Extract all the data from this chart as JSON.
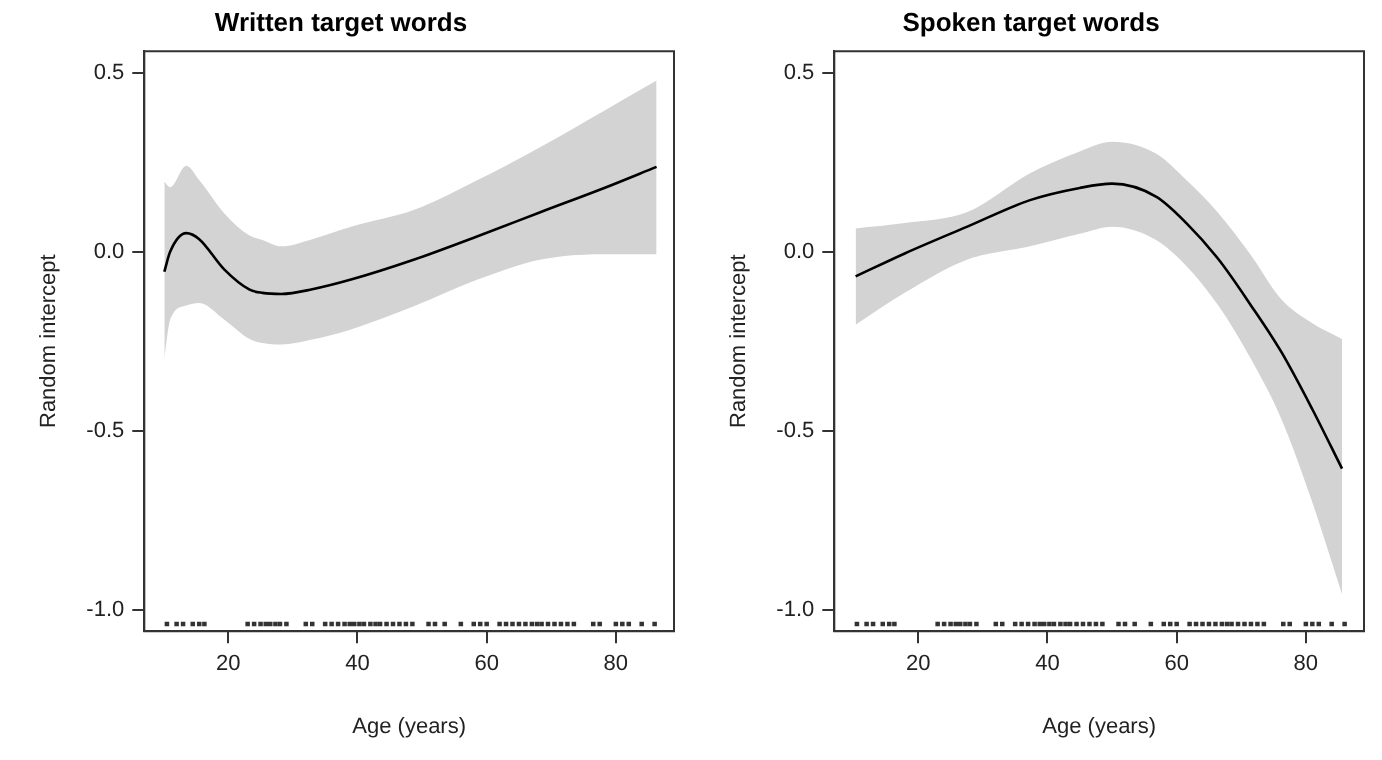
{
  "chart_data": [
    {
      "type": "line",
      "title": "Written target words",
      "xlabel": "Age (years)",
      "ylabel": "Random intercept",
      "xlim": [
        7,
        89
      ],
      "ylim": [
        -1.06,
        0.56
      ],
      "xticks": [
        20,
        40,
        60,
        80
      ],
      "yticks": [
        {
          "value": 0.5,
          "label": "0.5"
        },
        {
          "value": 0,
          "label": "0.0"
        },
        {
          "value": -0.5,
          "label": "-0.5"
        },
        {
          "value": -1,
          "label": "-1.0"
        }
      ],
      "grid": false,
      "legend": false,
      "series": [
        {
          "color": "#000000",
          "x": [
            10.1,
            11,
            13.5,
            15.5,
            19.4,
            23.3,
            25.3,
            28.2,
            33,
            39,
            48.8,
            58.6,
            68.4,
            78.2,
            86.3
          ],
          "values": [
            -0.056,
            0.0,
            0.052,
            0.035,
            -0.05,
            -0.106,
            -0.115,
            -0.118,
            -0.105,
            -0.078,
            -0.022,
            0.043,
            0.111,
            0.178,
            0.237
          ],
          "lower": [
            -0.3,
            -0.19,
            -0.15,
            -0.143,
            -0.19,
            -0.244,
            -0.255,
            -0.259,
            -0.245,
            -0.217,
            -0.152,
            -0.078,
            -0.022,
            -0.007,
            -0.007
          ],
          "upper": [
            0.196,
            0.18,
            0.24,
            0.2,
            0.107,
            0.045,
            0.033,
            0.015,
            0.035,
            0.07,
            0.117,
            0.2,
            0.293,
            0.394,
            0.478
          ]
        },
        {
          "type": "scatter",
          "color": "#333333",
          "x": [
            10.5,
            12,
            13,
            14.5,
            15.5,
            16.3,
            23,
            24,
            25,
            25.8,
            26.5,
            27.3,
            28,
            29,
            32,
            33,
            35,
            36,
            37,
            38,
            38.8,
            39.5,
            40.3,
            41,
            42,
            42.8,
            43.5,
            44.5,
            45.5,
            46.5,
            47.5,
            48.5,
            51,
            52,
            53.5,
            56,
            58,
            59,
            60,
            62,
            63,
            64,
            65,
            66,
            67,
            67.8,
            68.5,
            69.5,
            70.5,
            71.5,
            72.5,
            73.5,
            76.5,
            77.5,
            80,
            81,
            82,
            84,
            86
          ],
          "values": [
            -1.04,
            -1.04,
            -1.04,
            -1.04,
            -1.04,
            -1.04,
            -1.04,
            -1.04,
            -1.04,
            -1.04,
            -1.04,
            -1.04,
            -1.04,
            -1.04,
            -1.04,
            -1.04,
            -1.04,
            -1.04,
            -1.04,
            -1.04,
            -1.04,
            -1.04,
            -1.04,
            -1.04,
            -1.04,
            -1.04,
            -1.04,
            -1.04,
            -1.04,
            -1.04,
            -1.04,
            -1.04,
            -1.04,
            -1.04,
            -1.04,
            -1.04,
            -1.04,
            -1.04,
            -1.04,
            -1.04,
            -1.04,
            -1.04,
            -1.04,
            -1.04,
            -1.04,
            -1.04,
            -1.04,
            -1.04,
            -1.04,
            -1.04,
            -1.04,
            -1.04,
            -1.04,
            -1.04,
            -1.04,
            -1.04,
            -1.04,
            -1.04,
            -1.04
          ]
        }
      ]
    },
    {
      "type": "line",
      "title": "Spoken target words",
      "xlabel": "Age (years)",
      "ylabel": "Random intercept",
      "xlim": [
        7,
        89
      ],
      "ylim": [
        -1.06,
        0.56
      ],
      "xticks": [
        20,
        40,
        60,
        80
      ],
      "yticks": [
        {
          "value": 0.5,
          "label": "0.5"
        },
        {
          "value": 0,
          "label": "0.0"
        },
        {
          "value": -0.5,
          "label": "-0.5"
        },
        {
          "value": -1,
          "label": "-1.0"
        }
      ],
      "grid": false,
      "legend": false,
      "series": [
        {
          "color": "#000000",
          "x": [
            10.3,
            17.9,
            27.6,
            37.3,
            45,
            50,
            56.8,
            61.5,
            66.5,
            71.5,
            76.2,
            81,
            85.6
          ],
          "values": [
            -0.069,
            -0.005,
            0.07,
            0.144,
            0.178,
            0.19,
            0.154,
            0.08,
            -0.022,
            -0.15,
            -0.28,
            -0.44,
            -0.606
          ],
          "lower": [
            -0.204,
            -0.115,
            -0.022,
            0.015,
            0.05,
            0.07,
            0.033,
            -0.04,
            -0.152,
            -0.3,
            -0.467,
            -0.7,
            -0.957
          ],
          "upper": [
            0.065,
            0.08,
            0.111,
            0.219,
            0.28,
            0.307,
            0.274,
            0.2,
            0.107,
            -0.01,
            -0.133,
            -0.2,
            -0.244
          ]
        },
        {
          "type": "scatter",
          "color": "#333333",
          "x": [
            10.5,
            12,
            13,
            14.5,
            15.5,
            16.3,
            23,
            24,
            25,
            25.8,
            26.5,
            27.3,
            28,
            29,
            32,
            33,
            35,
            36,
            37,
            38,
            38.8,
            39.5,
            40.3,
            41,
            42,
            42.8,
            43.5,
            44.5,
            45.5,
            46.5,
            47.5,
            48.5,
            51,
            52,
            53.5,
            56,
            58,
            59,
            60,
            62,
            63,
            64,
            65,
            66,
            67,
            67.8,
            68.5,
            69.5,
            70.5,
            71.5,
            72.5,
            73.5,
            76.5,
            77.5,
            80,
            81,
            82,
            84,
            86
          ],
          "values": [
            -1.04,
            -1.04,
            -1.04,
            -1.04,
            -1.04,
            -1.04,
            -1.04,
            -1.04,
            -1.04,
            -1.04,
            -1.04,
            -1.04,
            -1.04,
            -1.04,
            -1.04,
            -1.04,
            -1.04,
            -1.04,
            -1.04,
            -1.04,
            -1.04,
            -1.04,
            -1.04,
            -1.04,
            -1.04,
            -1.04,
            -1.04,
            -1.04,
            -1.04,
            -1.04,
            -1.04,
            -1.04,
            -1.04,
            -1.04,
            -1.04,
            -1.04,
            -1.04,
            -1.04,
            -1.04,
            -1.04,
            -1.04,
            -1.04,
            -1.04,
            -1.04,
            -1.04,
            -1.04,
            -1.04,
            -1.04,
            -1.04,
            -1.04,
            -1.04,
            -1.04,
            -1.04,
            -1.04,
            -1.04,
            -1.04,
            -1.04,
            -1.04,
            -1.04
          ]
        }
      ]
    }
  ]
}
